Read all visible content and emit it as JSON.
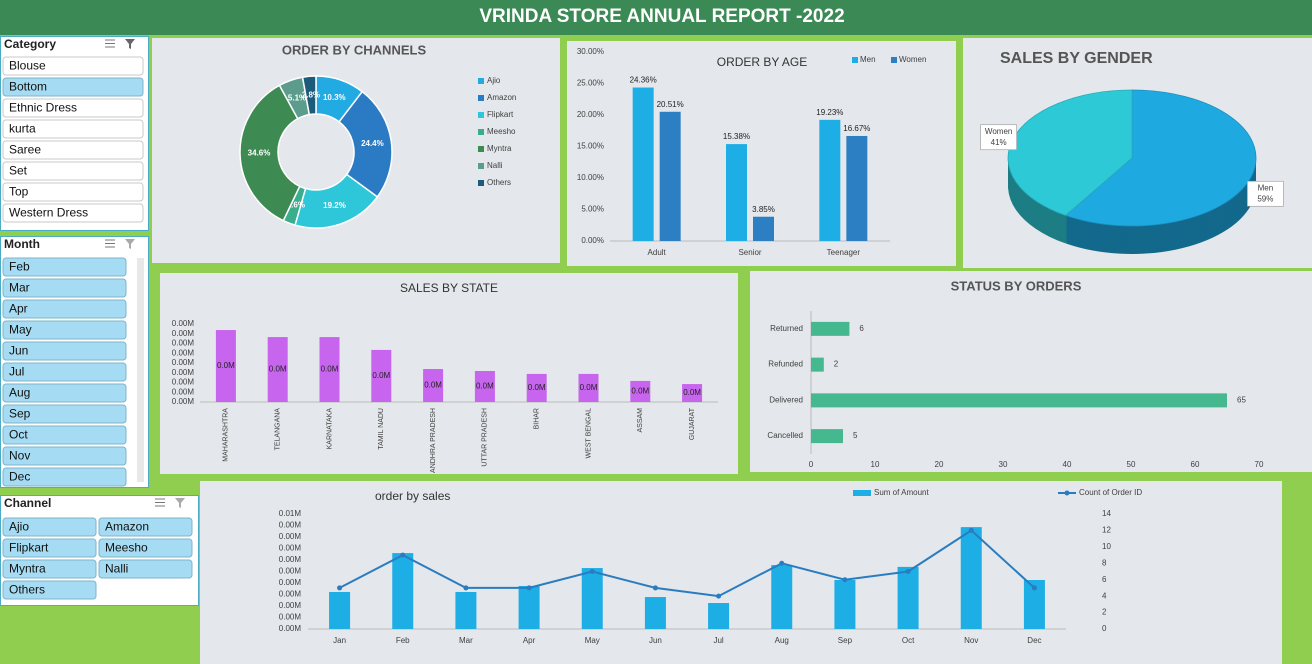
{
  "header": {
    "title": "VRINDA STORE ANNUAL REPORT -2022"
  },
  "slicers": [
    {
      "title": "Category",
      "items": [
        {
          "label": "Blouse",
          "selected": false
        },
        {
          "label": "Bottom",
          "selected": true
        },
        {
          "label": "Ethnic Dress",
          "selected": false
        },
        {
          "label": "kurta",
          "selected": false
        },
        {
          "label": "Saree",
          "selected": false
        },
        {
          "label": "Set",
          "selected": false
        },
        {
          "label": "Top",
          "selected": false
        },
        {
          "label": "Western Dress",
          "selected": false
        }
      ]
    },
    {
      "title": "Month",
      "items": [
        {
          "label": "Feb",
          "selected": true
        },
        {
          "label": "Mar",
          "selected": true
        },
        {
          "label": "Apr",
          "selected": true
        },
        {
          "label": "May",
          "selected": true
        },
        {
          "label": "Jun",
          "selected": true
        },
        {
          "label": "Jul",
          "selected": true
        },
        {
          "label": "Aug",
          "selected": true
        },
        {
          "label": "Sep",
          "selected": true
        },
        {
          "label": "Oct",
          "selected": true
        },
        {
          "label": "Nov",
          "selected": true
        },
        {
          "label": "Dec",
          "selected": true
        }
      ]
    },
    {
      "title": "Channel",
      "items": [
        {
          "label": "Ajio",
          "selected": true
        },
        {
          "label": "Amazon",
          "selected": true
        },
        {
          "label": "Flipkart",
          "selected": true
        },
        {
          "label": "Meesho",
          "selected": true
        },
        {
          "label": "Myntra",
          "selected": true
        },
        {
          "label": "Nalli",
          "selected": true
        },
        {
          "label": "Others",
          "selected": true
        }
      ]
    }
  ],
  "chart_data": [
    {
      "type": "donut",
      "title": "ORDER BY CHANNELS",
      "categories": [
        "Ajio",
        "Amazon",
        "Flipkart",
        "Meesho",
        "Myntra",
        "Nalli",
        "Others"
      ],
      "values": [
        10.3,
        24.4,
        19.2,
        2.6,
        34.6,
        5.1,
        2.8
      ],
      "value_labels": [
        "10.3%",
        "24.4%",
        "19.2%",
        "2.6%",
        "34.6%",
        "5.1%",
        "2.8%"
      ],
      "colors": [
        "#22aae3",
        "#2b7bc4",
        "#2ec6d9",
        "#3aae8c",
        "#3d8a52",
        "#5c9c8c",
        "#1c5b7a"
      ]
    },
    {
      "type": "bar",
      "title": "ORDER BY AGE",
      "categories": [
        "Adult",
        "Senior",
        "Teenager"
      ],
      "series": [
        {
          "name": "Men",
          "color": "#1eaee6",
          "values": [
            24.36,
            15.38,
            19.23
          ],
          "value_labels": [
            "24.36%",
            "15.38%",
            "19.23%"
          ]
        },
        {
          "name": "Women",
          "color": "#2c7fc3",
          "values": [
            20.51,
            3.85,
            16.67
          ],
          "value_labels": [
            "20.51%",
            "3.85%",
            "16.67%"
          ]
        }
      ],
      "ylim": [
        0,
        30
      ],
      "yticks": [
        {
          "value": 0,
          "label": "0.00%"
        },
        {
          "value": 5,
          "label": "5.00%"
        },
        {
          "value": 10,
          "label": "10.00%"
        },
        {
          "value": 15,
          "label": "15.00%"
        },
        {
          "value": 20,
          "label": "20.00%"
        },
        {
          "value": 25,
          "label": "25.00%"
        },
        {
          "value": 30,
          "label": "30.00%"
        }
      ],
      "legend": "top-right"
    },
    {
      "type": "pie",
      "title": "SALES BY GENDER",
      "categories": [
        "Men",
        "Women"
      ],
      "values": [
        59,
        41
      ],
      "value_labels": [
        "59%",
        "41%"
      ],
      "colors": [
        "#1fa9e1",
        "#2ec9d6"
      ],
      "three_d": true
    },
    {
      "type": "bar",
      "title": "SALES BY STATE",
      "categories": [
        "MAHARASHTRA",
        "TELANGANA",
        "KARNATAKA",
        "TAMIL NADU",
        "ANDHRA PRADESH",
        "UTTAR PRADESH",
        "BIHAR",
        "WEST BENGAL",
        "ASSAM",
        "GUJARAT"
      ],
      "values": [
        0.00369,
        0.00333,
        0.00333,
        0.00267,
        0.00169,
        0.00159,
        0.00144,
        0.00144,
        0.00108,
        0.00092
      ],
      "value_labels": [
        "0.0M",
        "0.0M",
        "0.0M",
        "0.0M",
        "0.0M",
        "0.0M",
        "0.0M",
        "0.0M",
        "0.0M",
        "0.0M"
      ],
      "color": "#c865ee",
      "ylim": [
        0,
        0.004
      ],
      "yticks": [
        {
          "value": 0,
          "label": "0.00M"
        },
        {
          "value": 0.0005,
          "label": "0.00M"
        },
        {
          "value": 0.001,
          "label": "0.00M"
        },
        {
          "value": 0.0015,
          "label": "0.00M"
        },
        {
          "value": 0.002,
          "label": "0.00M"
        },
        {
          "value": 0.0025,
          "label": "0.00M"
        },
        {
          "value": 0.003,
          "label": "0.00M"
        },
        {
          "value": 0.0035,
          "label": "0.00M"
        },
        {
          "value": 0.004,
          "label": "0.00M"
        }
      ]
    },
    {
      "type": "bar",
      "orientation": "horizontal",
      "title": "STATUS BY ORDERS",
      "categories": [
        "Returned",
        "Refunded",
        "Delivered",
        "Cancelled"
      ],
      "values": [
        6,
        2,
        65,
        5
      ],
      "color": "#45b890",
      "xlim": [
        0,
        70
      ],
      "xticks": [
        0,
        10,
        20,
        30,
        40,
        50,
        60,
        70
      ]
    },
    {
      "type": "combo",
      "title": "order by sales",
      "categories": [
        "Jan",
        "Feb",
        "Mar",
        "Apr",
        "May",
        "Jun",
        "Jul",
        "Aug",
        "Sep",
        "Oct",
        "Nov",
        "Dec"
      ],
      "series": [
        {
          "name": "Sum of Amount",
          "type": "bar",
          "color": "#1eaee6",
          "values": [
            0.00161,
            0.0033,
            0.00161,
            0.00187,
            0.00265,
            0.00139,
            0.00113,
            0.00278,
            0.00213,
            0.0027,
            0.00443,
            0.00213
          ]
        },
        {
          "name": "Count of Order ID",
          "type": "line",
          "axis": "y2",
          "color": "#2a7cc0",
          "values": [
            5,
            9,
            5,
            5,
            7,
            5,
            4,
            8,
            6,
            7,
            12,
            5
          ]
        }
      ],
      "ylim": [
        0,
        0.005
      ],
      "yticks": [
        {
          "value": 0,
          "label": "0.00M"
        },
        {
          "value": 0.0005,
          "label": "0.00M"
        },
        {
          "value": 0.001,
          "label": "0.00M"
        },
        {
          "value": 0.0015,
          "label": "0.00M"
        },
        {
          "value": 0.002,
          "label": "0.00M"
        },
        {
          "value": 0.0025,
          "label": "0.00M"
        },
        {
          "value": 0.003,
          "label": "0.00M"
        },
        {
          "value": 0.0035,
          "label": "0.00M"
        },
        {
          "value": 0.004,
          "label": "0.00M"
        },
        {
          "value": 0.0045,
          "label": "0.00M"
        },
        {
          "value": 0.005,
          "label": "0.01M"
        }
      ],
      "y2lim": [
        0,
        14
      ],
      "y2ticks": [
        0,
        2,
        4,
        6,
        8,
        10,
        12,
        14
      ],
      "legend": "top-right"
    }
  ]
}
